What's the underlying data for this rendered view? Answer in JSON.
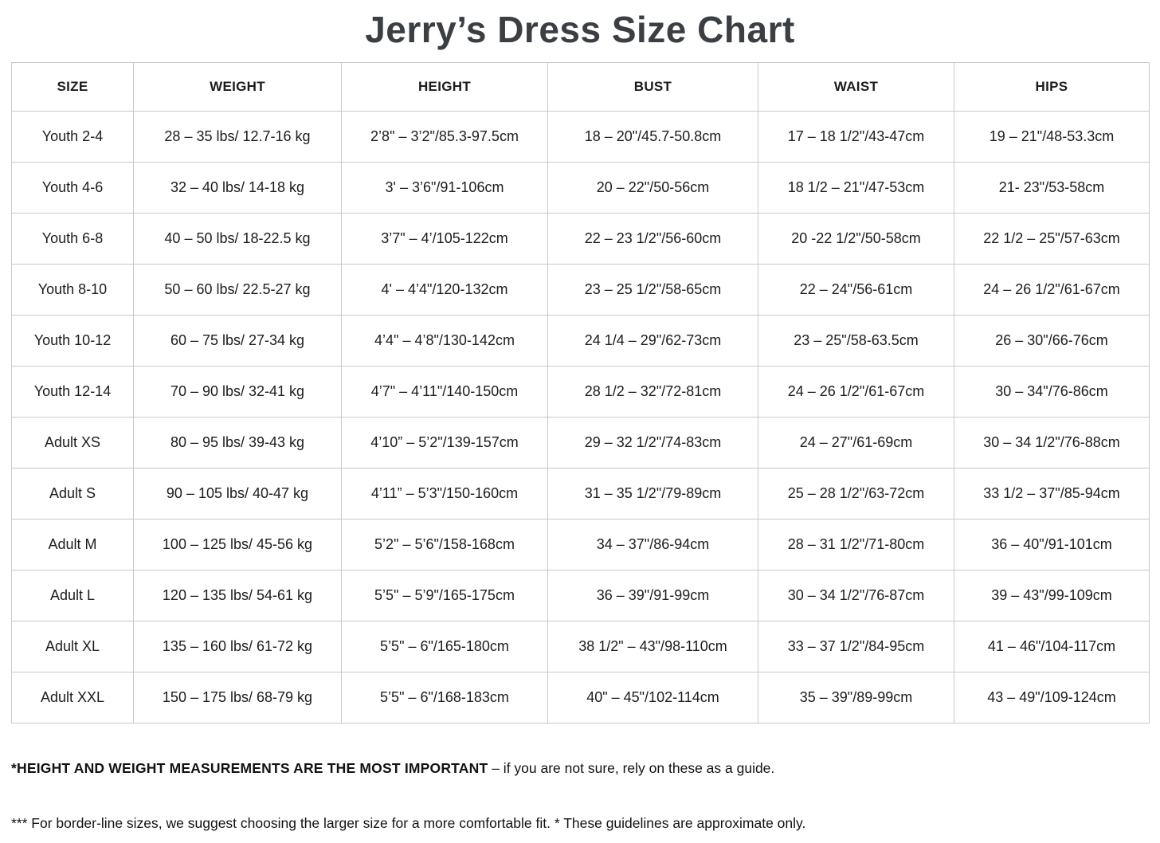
{
  "title": "Jerry’s Dress Size Chart",
  "table": {
    "headers": [
      "SIZE",
      "WEIGHT",
      "HEIGHT",
      "BUST",
      "WAIST",
      "HIPS"
    ],
    "rows": [
      [
        "Youth 2-4",
        "28 – 35 lbs/ 12.7-16 kg",
        "2’8\" – 3’2\"/85.3-97.5cm",
        "18 – 20\"/45.7-50.8cm",
        "17 – 18 1/2\"/43-47cm",
        "19 – 21\"/48-53.3cm"
      ],
      [
        "Youth 4-6",
        "32 – 40 lbs/ 14-18 kg",
        "3' – 3’6\"/91-106cm",
        "20 – 22\"/50-56cm",
        "18 1/2 – 21\"/47-53cm",
        "21- 23\"/53-58cm"
      ],
      [
        "Youth 6-8",
        "40 – 50 lbs/ 18-22.5 kg",
        "3’7\" – 4’/105-122cm",
        "22 – 23 1/2\"/56-60cm",
        "20 -22 1/2\"/50-58cm",
        "22 1/2 – 25\"/57-63cm"
      ],
      [
        "Youth 8-10",
        "50 – 60 lbs/ 22.5-27 kg",
        "4' – 4’4\"/120-132cm",
        "23 – 25 1/2\"/58-65cm",
        "22 – 24\"/56-61cm",
        "24 – 26 1/2\"/61-67cm"
      ],
      [
        "Youth 10-12",
        "60 – 75 lbs/ 27-34 kg",
        "4’4\" – 4’8\"/130-142cm",
        "24 1/4 – 29\"/62-73cm",
        "23 – 25\"/58-63.5cm",
        "26 – 30\"/66-76cm"
      ],
      [
        "Youth 12-14",
        "70 – 90 lbs/ 32-41 kg",
        "4’7\" – 4’11\"/140-150cm",
        "28 1/2 – 32\"/72-81cm",
        "24 – 26 1/2\"/61-67cm",
        "30 – 34\"/76-86cm"
      ],
      [
        "Adult XS",
        "80 – 95 lbs/ 39-43 kg",
        "4’10” – 5’2\"/139-157cm",
        "29 – 32 1/2\"/74-83cm",
        "24 – 27\"/61-69cm",
        "30 – 34 1/2\"/76-88cm"
      ],
      [
        "Adult S",
        "90 – 105 lbs/ 40-47 kg",
        "4’11” – 5’3\"/150-160cm",
        "31 – 35 1/2\"/79-89cm",
        "25 – 28 1/2\"/63-72cm",
        "33 1/2 – 37\"/85-94cm"
      ],
      [
        "Adult M",
        "100 – 125 lbs/ 45-56 kg",
        "5’2\" – 5’6\"/158-168cm",
        "34 – 37\"/86-94cm",
        "28 – 31 1/2\"/71-80cm",
        "36 – 40\"/91-101cm"
      ],
      [
        "Adult L",
        "120 – 135 lbs/ 54-61 kg",
        "5’5\" – 5’9\"/165-175cm",
        "36 – 39\"/91-99cm",
        "30 – 34 1/2\"/76-87cm",
        "39 – 43\"/99-109cm"
      ],
      [
        "Adult XL",
        "135 – 160 lbs/ 61-72 kg",
        "5’5\" – 6\"/165-180cm",
        "38 1/2\" – 43\"/98-110cm",
        "33 – 37 1/2\"/84-95cm",
        "41 – 46\"/104-117cm"
      ],
      [
        "Adult XXL",
        "150 – 175 lbs/ 68-79 kg",
        "5’5\" – 6\"/168-183cm",
        "40\" – 45\"/102-114cm",
        "35 – 39\"/89-99cm",
        "43 – 49\"/109-124cm"
      ]
    ]
  },
  "footnotes": [
    {
      "bold": "*HEIGHT AND WEIGHT MEASUREMENTS ARE THE MOST IMPORTANT",
      "text": " – if you are not sure, rely on these as a guide."
    },
    {
      "bold": "",
      "text": "*** For border-line sizes, we suggest choosing the larger size for a more comfortable fit. * These guidelines are approximate only."
    }
  ]
}
